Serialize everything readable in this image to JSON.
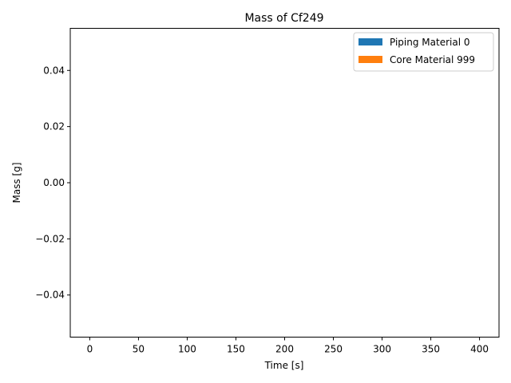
{
  "chart_data": {
    "type": "area",
    "title": "Mass of Cf249",
    "xlabel": "Time [s]",
    "ylabel": "Mass [g]",
    "xlim": [
      -20,
      420
    ],
    "ylim": [
      -0.055,
      0.055
    ],
    "x_ticks": [
      0,
      50,
      100,
      150,
      200,
      250,
      300,
      350,
      400
    ],
    "x_tick_labels": [
      "0",
      "50",
      "100",
      "150",
      "200",
      "250",
      "300",
      "350",
      "400"
    ],
    "y_ticks": [
      -0.04,
      -0.02,
      0.0,
      0.02,
      0.04
    ],
    "y_tick_labels": [
      "−0.04",
      "−0.02",
      "0.00",
      "0.02",
      "0.04"
    ],
    "grid": false,
    "legend_position": "top-right",
    "series": [
      {
        "name": "Piping Material 0",
        "color": "#1f77b4",
        "x": [],
        "values": []
      },
      {
        "name": "Core Material 999",
        "color": "#ff7f0e",
        "x": [],
        "values": []
      }
    ]
  }
}
